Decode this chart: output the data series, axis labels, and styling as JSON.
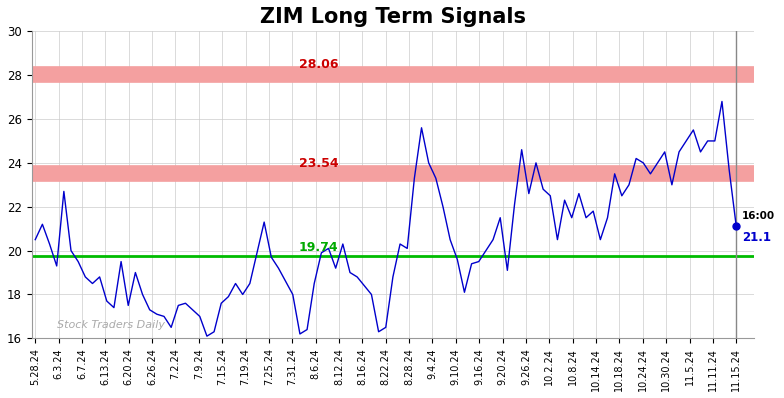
{
  "title": "ZIM Long Term Signals",
  "title_fontsize": 15,
  "title_fontweight": "bold",
  "hline_upper": 28.06,
  "hline_mid": 23.54,
  "hline_lower": 19.74,
  "hline_upper_color": "#f4a0a0",
  "hline_mid_color": "#f4a0a0",
  "hline_lower_color": "#00bb00",
  "hline_label_color_red": "#cc0000",
  "hline_label_color_green": "#00aa00",
  "last_time_label": "16:00",
  "last_price_label": "21.1",
  "watermark": "Stock Traders Daily",
  "watermark_color": "#aaaaaa",
  "ylim": [
    16,
    30
  ],
  "yticks": [
    16,
    18,
    20,
    22,
    24,
    26,
    28,
    30
  ],
  "line_color": "#0000cc",
  "dot_color": "#0000cc",
  "background_color": "#ffffff",
  "grid_color": "#cccccc",
  "x_labels": [
    "5.28.24",
    "6.3.24",
    "6.7.24",
    "6.13.24",
    "6.20.24",
    "6.26.24",
    "7.2.24",
    "7.9.24",
    "7.15.24",
    "7.19.24",
    "7.25.24",
    "7.31.24",
    "8.6.24",
    "8.12.24",
    "8.16.24",
    "8.22.24",
    "8.28.24",
    "9.4.24",
    "9.10.24",
    "9.16.24",
    "9.20.24",
    "9.26.24",
    "10.2.24",
    "10.8.24",
    "10.14.24",
    "10.18.24",
    "10.24.24",
    "10.30.24",
    "11.5.24",
    "11.11.24",
    "11.15.24"
  ],
  "prices": [
    20.5,
    21.2,
    20.3,
    19.3,
    22.7,
    20.0,
    19.5,
    18.8,
    18.5,
    18.8,
    17.7,
    17.4,
    19.5,
    17.5,
    19.0,
    18.0,
    17.3,
    17.1,
    17.0,
    16.5,
    17.5,
    17.6,
    17.3,
    17.0,
    16.1,
    16.3,
    17.6,
    17.9,
    18.5,
    18.0,
    18.5,
    19.9,
    21.3,
    19.7,
    19.2,
    18.6,
    18.0,
    16.2,
    16.4,
    18.5,
    19.9,
    20.1,
    19.2,
    20.3,
    19.0,
    18.8,
    18.4,
    18.0,
    16.3,
    16.5,
    18.8,
    20.3,
    20.1,
    23.3,
    25.6,
    24.0,
    23.3,
    22.0,
    20.5,
    19.6,
    18.1,
    19.4,
    19.5,
    20.0,
    20.5,
    21.5,
    19.1,
    22.1,
    24.6,
    22.6,
    24.0,
    22.8,
    22.5,
    20.5,
    22.3,
    21.5,
    22.6,
    21.5,
    21.8,
    20.5,
    21.5,
    23.5,
    22.5,
    23.0,
    24.2,
    24.0,
    23.5,
    24.0,
    24.5,
    23.0,
    24.5,
    25.0,
    25.5,
    24.5,
    25.0,
    25.0,
    26.8,
    23.7,
    21.1
  ]
}
